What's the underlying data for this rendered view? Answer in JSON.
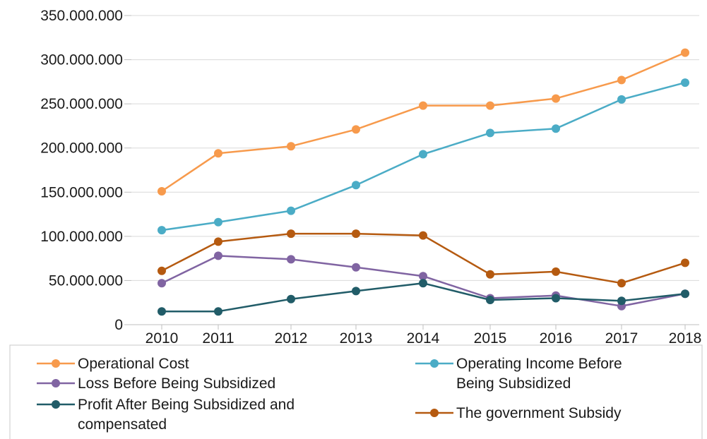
{
  "chart_data": {
    "type": "line",
    "title": "",
    "xlabel": "",
    "ylabel": "",
    "x": [
      "2010",
      "2011",
      "2012",
      "2013",
      "2014",
      "2015",
      "2016",
      "2017",
      "2018"
    ],
    "ylim": [
      0,
      350000000
    ],
    "y_ticks": [
      0,
      50000000,
      100000000,
      150000000,
      200000000,
      250000000,
      300000000,
      350000000
    ],
    "y_tick_labels": [
      "0",
      "50.000.000",
      "100.000.000",
      "150.000.000",
      "200.000.000",
      "250.000.000",
      "300.000.000",
      "350.000.000"
    ],
    "grid": true,
    "legend_position": "bottom",
    "series": [
      {
        "name": "Operational Cost",
        "color": "#F79A4C",
        "values": [
          151000000,
          194000000,
          202000000,
          221000000,
          248000000,
          248000000,
          256000000,
          277000000,
          308000000
        ]
      },
      {
        "name": "Operating Income Before Being Subsidized",
        "color": "#4BACC6",
        "values": [
          107000000,
          116000000,
          129000000,
          158000000,
          193000000,
          217000000,
          222000000,
          255000000,
          274000000
        ]
      },
      {
        "name": "Loss Before Being Subsidized",
        "color": "#8064A2",
        "values": [
          47000000,
          78000000,
          74000000,
          65000000,
          55000000,
          30000000,
          33000000,
          21000000,
          35000000
        ]
      },
      {
        "name": "The government Subsidy",
        "color": "#B55A10",
        "values": [
          61000000,
          94000000,
          103000000,
          103000000,
          101000000,
          57000000,
          60000000,
          47000000,
          70000000
        ]
      },
      {
        "name": "Profit After Being Subsidized and compensated",
        "color": "#215C68",
        "values": [
          15000000,
          15000000,
          29000000,
          38000000,
          47000000,
          28000000,
          30000000,
          27000000,
          35000000
        ]
      }
    ],
    "legend": [
      {
        "series": 0,
        "lines": [
          "Operational Cost"
        ]
      },
      {
        "series": 1,
        "lines": [
          "Operating Income Before",
          "Being Subsidized"
        ]
      },
      {
        "series": 2,
        "lines": [
          "Loss Before Being Subsidized"
        ]
      },
      {
        "series": 4,
        "lines": [
          "Profit After Being Subsidized and",
          "compensated"
        ]
      },
      {
        "series": 3,
        "lines": [
          "The government Subsidy"
        ]
      }
    ]
  }
}
